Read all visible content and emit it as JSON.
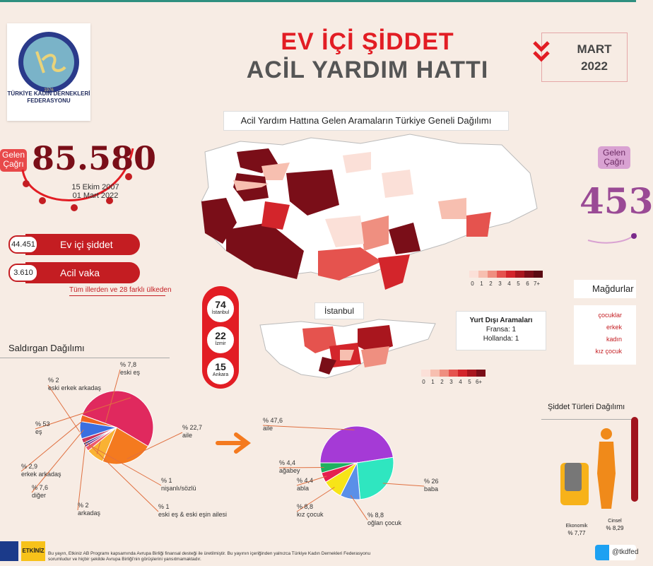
{
  "header": {
    "title_line1": "EV İÇİ ŞİDDET",
    "title_line2": "ACİL YARDIM HATTI",
    "month": "MART",
    "year": "2022",
    "logo_text": "TÜRKİYE KADIN DERNEKLERİ FEDERASYONU",
    "logo_year": "1976",
    "color_red": "#e21d24",
    "color_dark": "#7a0e18"
  },
  "left_stats": {
    "badge": "Gelen Çağrı",
    "total": "85.580",
    "date_from": "15 Ekim 2007",
    "date_to": "01 Mart 2022",
    "rows": [
      {
        "value": "44.451",
        "label": "Ev içi şiddet"
      },
      {
        "value": "3.610",
        "label": "Acil vaka"
      }
    ],
    "note": "Tüm illerden ve 28 farklı ülkeden"
  },
  "right_stats": {
    "badge": "Gelen Çağrı",
    "total": "453",
    "victims_title": "Mağdurlar",
    "victims": [
      "çocuklar",
      "erkek",
      "kadın",
      "kız çocuk"
    ],
    "violence_title": "Şiddet Türleri Dağılımı",
    "violence": [
      {
        "label": "Ekonomik",
        "value": "% 7,77"
      },
      {
        "label": "Cinsel",
        "value": "% 8,29"
      }
    ]
  },
  "map": {
    "title": "Acil Yardım Hattına Gelen Aramaların Türkiye Geneli Dağılımı",
    "legend": [
      "0",
      "1",
      "2",
      "3",
      "4",
      "5",
      "6",
      "7+"
    ],
    "istanbul_title": "İstanbul",
    "istanbul_legend": [
      "0",
      "1",
      "2",
      "3",
      "4",
      "5",
      "6+"
    ],
    "legend_colors": [
      "#fbe0d8",
      "#f7bfb0",
      "#ef8f80",
      "#e5534e",
      "#d3252b",
      "#a9161e",
      "#7a0e18"
    ],
    "cities": [
      {
        "value": "74",
        "name": "İstanbul"
      },
      {
        "value": "22",
        "name": "İzmir"
      },
      {
        "value": "15",
        "name": "Ankara"
      }
    ],
    "abroad_title": "Yurt Dışı Aramaları",
    "abroad": [
      "Fransa: 1",
      "Hollanda: 1"
    ]
  },
  "chart_data": [
    {
      "type": "pie",
      "title": "Saldırgan Dağılımı",
      "categories": [
        "eş",
        "aile",
        "eski eş",
        "eski erkek arkadaş",
        "nişanlı/sözlü",
        "eski eş & eski eşin ailesi",
        "arkadaş",
        "diğer",
        "erkek arkadaş"
      ],
      "labels": [
        "% 53",
        "% 22,7",
        "% 7,8",
        "% 2",
        "% 1",
        "% 1",
        "% 2",
        "% 7,6",
        "% 2,9"
      ],
      "values": [
        53,
        22.7,
        7.8,
        2,
        1,
        1,
        2,
        7.6,
        2.9
      ],
      "colors": [
        "#e0295e",
        "#f47a1f",
        "#f9b233",
        "#ee5a6e",
        "#7a2a8a",
        "#2a3a8a",
        "#c8325a",
        "#3a6fe0",
        "#f0641e"
      ]
    },
    {
      "type": "pie",
      "categories": [
        "aile",
        "baba",
        "oğlan çocuk",
        "kız çocuk",
        "abla",
        "ağabey"
      ],
      "labels": [
        "% 47,6",
        "% 26",
        "% 8,8",
        "% 8,8",
        "% 4,4",
        "% 4,4"
      ],
      "values": [
        47.6,
        26,
        8.8,
        8.8,
        4.4,
        4.4
      ],
      "colors": [
        "#a53ad6",
        "#2fe6c0",
        "#5a8fe8",
        "#f7e418",
        "#e52050",
        "#1fb060"
      ]
    }
  ],
  "footer": {
    "text": "Bu yayın, Etkiniz AB Programı kapsamında Avrupa Birliği finansal desteği ile üretilmiştir. Bu yayının içeriğinden yalnızca Türkiye Kadın Dernekleri Federasyonu sorumludur ve hiçbir şekilde Avrupa Birliği'nin görüşlerini yansıtmamaktadır.",
    "twitter": "@tkdfed",
    "program": "ETKİNİZ"
  }
}
